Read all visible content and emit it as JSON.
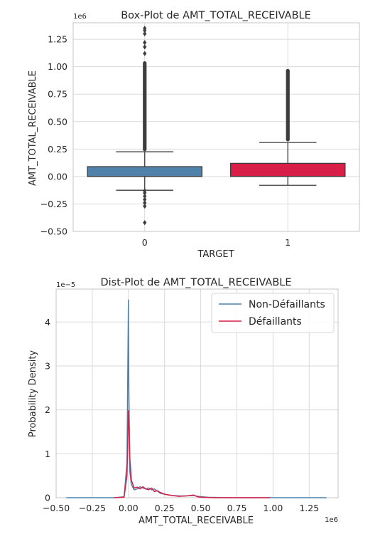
{
  "chart_data": [
    {
      "type": "box",
      "title": "Box-Plot de AMT_TOTAL_RECEIVABLE",
      "xlabel": "TARGET",
      "ylabel": "AMT_TOTAL_RECEIVABLE",
      "y_scale_label": "1e6",
      "categories": [
        "0",
        "1"
      ],
      "ylim": [
        -0.5,
        1.4
      ],
      "yticks": [
        "1.25",
        "1.00",
        "0.75",
        "0.50",
        "0.25",
        "0.00",
        "−0.25",
        "−0.50"
      ],
      "ytick_values": [
        1.25,
        1.0,
        0.75,
        0.5,
        0.25,
        0.0,
        -0.25,
        -0.5
      ],
      "grid": true,
      "boxes": [
        {
          "category": "0",
          "color": "#4f81ab",
          "q1": 0.0,
          "median": 0.0,
          "q3": 0.09,
          "whisker_low": -0.125,
          "whisker_high": 0.225,
          "outliers_low": [
            -0.13,
            -0.15,
            -0.18,
            -0.21,
            -0.24,
            -0.27,
            -0.42
          ],
          "outliers_high_range": [
            0.23,
            1.05
          ],
          "outliers_high_extra": [
            1.12,
            1.18,
            1.22,
            1.3,
            1.33,
            1.35
          ]
        },
        {
          "category": "1",
          "color": "#d81f47",
          "q1": 0.0,
          "median": 0.0,
          "q3": 0.12,
          "whisker_low": -0.08,
          "whisker_high": 0.31,
          "outliers_low": [],
          "outliers_high_range": [
            0.32,
            0.98
          ],
          "outliers_high_extra": []
        }
      ]
    },
    {
      "type": "line",
      "title": "Dist-Plot de AMT_TOTAL_RECEIVABLE",
      "xlabel": "AMT_TOTAL_RECEIVABLE",
      "ylabel": "Probability Density",
      "x_scale_label": "1e6",
      "y_scale_label": "1e−5",
      "xlim": [
        -0.5,
        1.45
      ],
      "ylim": [
        0,
        4.75
      ],
      "xticks": [
        "−0.50",
        "−0.25",
        "0.00",
        "0.25",
        "0.50",
        "0.75",
        "1.00",
        "1.25"
      ],
      "xtick_values": [
        -0.5,
        -0.25,
        0.0,
        0.25,
        0.5,
        0.75,
        1.0,
        1.25
      ],
      "yticks": [
        "0",
        "1",
        "2",
        "3",
        "4"
      ],
      "ytick_values": [
        0,
        1,
        2,
        3,
        4
      ],
      "grid": true,
      "legend_position": "top-right",
      "series": [
        {
          "name": "Non-Défaillants",
          "color": "#4f81ab",
          "x": [
            -0.43,
            -0.1,
            -0.03,
            -0.01,
            0.0,
            0.003,
            0.01,
            0.02,
            0.04,
            0.06,
            0.08,
            0.1,
            0.12,
            0.14,
            0.16,
            0.18,
            0.2,
            0.22,
            0.25,
            0.3,
            0.35,
            0.4,
            0.45,
            0.48,
            0.55,
            0.7,
            0.9,
            1.1,
            1.37
          ],
          "y": [
            0.0,
            0.0,
            0.02,
            0.8,
            4.5,
            2.5,
            0.6,
            0.3,
            0.18,
            0.2,
            0.25,
            0.22,
            0.2,
            0.22,
            0.18,
            0.2,
            0.15,
            0.1,
            0.08,
            0.05,
            0.04,
            0.04,
            0.05,
            0.03,
            0.01,
            0.0,
            0.0,
            0.0,
            0.0
          ]
        },
        {
          "name": "Défaillants",
          "color": "#d81f47",
          "x": [
            -0.1,
            -0.03,
            -0.01,
            0.0,
            0.005,
            0.01,
            0.02,
            0.04,
            0.06,
            0.08,
            0.1,
            0.12,
            0.14,
            0.16,
            0.18,
            0.2,
            0.22,
            0.25,
            0.3,
            0.35,
            0.4,
            0.45,
            0.48,
            0.5,
            0.6,
            0.8,
            0.98
          ],
          "y": [
            0.0,
            0.01,
            0.5,
            1.98,
            1.6,
            0.9,
            0.4,
            0.22,
            0.24,
            0.2,
            0.25,
            0.2,
            0.18,
            0.22,
            0.14,
            0.16,
            0.12,
            0.08,
            0.05,
            0.03,
            0.04,
            0.06,
            0.02,
            0.01,
            0.0,
            0.0,
            0.0
          ]
        }
      ]
    }
  ]
}
